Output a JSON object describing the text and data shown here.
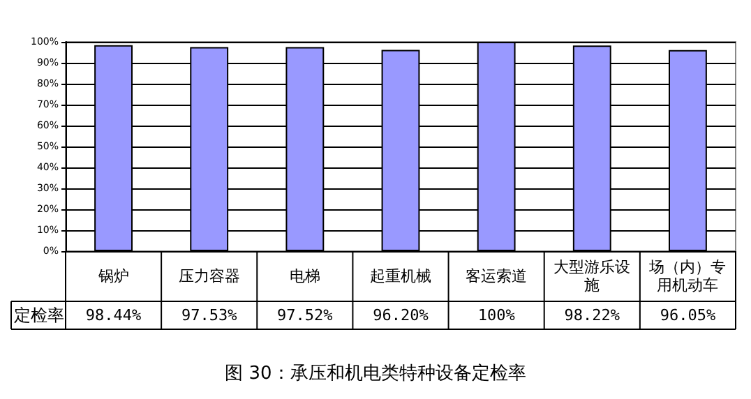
{
  "chart_data": {
    "type": "bar",
    "title": "图 30：承压和机电类特种设备定检率",
    "categories": [
      "锅炉",
      "压力容器",
      "电梯",
      "起重机械",
      "客运索道",
      "大型游乐设施",
      "场（内）专用机动车"
    ],
    "series": [
      {
        "name": "定检率",
        "color": "#9999ff",
        "values": [
          98.44,
          97.53,
          97.52,
          96.2,
          100,
          98.22,
          96.05
        ],
        "value_labels": [
          "98.44%",
          "97.53%",
          "97.52%",
          "96.20%",
          "100%",
          "98.22%",
          "96.05%"
        ]
      }
    ],
    "ylim": [
      0,
      100
    ],
    "yticks": [
      {
        "value": 0,
        "label": "0%"
      },
      {
        "value": 10,
        "label": "10%"
      },
      {
        "value": 20,
        "label": "20%"
      },
      {
        "value": 30,
        "label": "30%"
      },
      {
        "value": 40,
        "label": "40%"
      },
      {
        "value": 50,
        "label": "50%"
      },
      {
        "value": 60,
        "label": "60%"
      },
      {
        "value": 70,
        "label": "70%"
      },
      {
        "value": 80,
        "label": "80%"
      },
      {
        "value": 90,
        "label": "90%"
      },
      {
        "value": 100,
        "label": "100%"
      }
    ],
    "grid": "y",
    "legend": "bottom left"
  }
}
